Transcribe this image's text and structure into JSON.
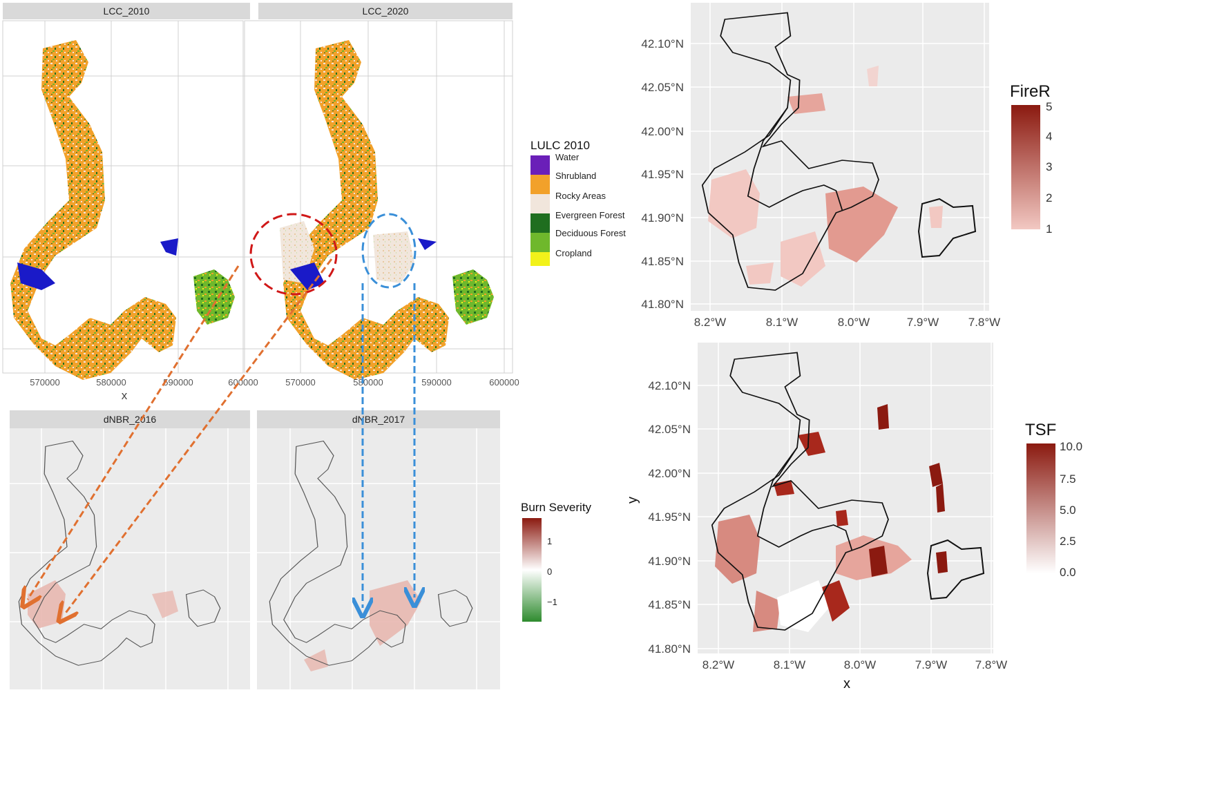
{
  "lulc_panel": {
    "strips": [
      "LCC_2010",
      "LCC_2020"
    ],
    "x_ticks": [
      "570000",
      "580000",
      "590000",
      "600000"
    ],
    "x_title": "x",
    "legend": {
      "title": "LULC 2010",
      "classes": [
        {
          "label": "Water",
          "color": "#6a1fb8"
        },
        {
          "label": "Shrubland",
          "color": "#f2a12a"
        },
        {
          "label": "Rocky Areas",
          "color": "#f1e6dc"
        },
        {
          "label": "Evergreen Forest",
          "color": "#1f6e1f"
        },
        {
          "label": "Deciduous Forest",
          "color": "#6fb82c"
        },
        {
          "label": "Cropland",
          "color": "#f2f21a"
        }
      ]
    }
  },
  "dnbr_panel": {
    "strips": [
      "dNBR_2016",
      "dNBR_2017"
    ],
    "legend": {
      "title": "Burn Severity",
      "ticks": [
        "1",
        "0",
        "−1"
      ],
      "colors": {
        "high": "#8b1a10",
        "mid": "#ffffff",
        "low": "#2e8b2e"
      }
    }
  },
  "firer_panel": {
    "y_ticks": [
      "42.10°N",
      "42.05°N",
      "42.00°N",
      "41.95°N",
      "41.90°N",
      "41.85°N",
      "41.80°N"
    ],
    "x_ticks": [
      "8.2°W",
      "8.1°W",
      "8.0°W",
      "7.9°W",
      "7.8°W"
    ],
    "legend": {
      "title": "FireR",
      "ticks": [
        "5",
        "4",
        "3",
        "2",
        "1"
      ],
      "colors": {
        "high": "#8b1a10",
        "low": "#f2c8c2"
      }
    }
  },
  "tsf_panel": {
    "y_ticks": [
      "42.10°N",
      "42.05°N",
      "42.00°N",
      "41.95°N",
      "41.90°N",
      "41.85°N",
      "41.80°N"
    ],
    "x_ticks": [
      "8.2°W",
      "8.1°W",
      "8.0°W",
      "7.9°W",
      "7.8°W"
    ],
    "x_title": "x",
    "y_title": "y",
    "legend": {
      "title": "TSF",
      "ticks": [
        "10.0",
        "7.5",
        "5.0",
        "2.5",
        "0.0"
      ],
      "colors": {
        "high": "#8b1a10",
        "low": "#ffffff"
      }
    }
  },
  "colors": {
    "panel_bg": "#ebebeb",
    "strip_bg": "#d9d9d9",
    "outline": "#111111",
    "arrow_orange": "#e07030",
    "arrow_blue": "#3a8fd8",
    "circle_red": "#d01818"
  }
}
